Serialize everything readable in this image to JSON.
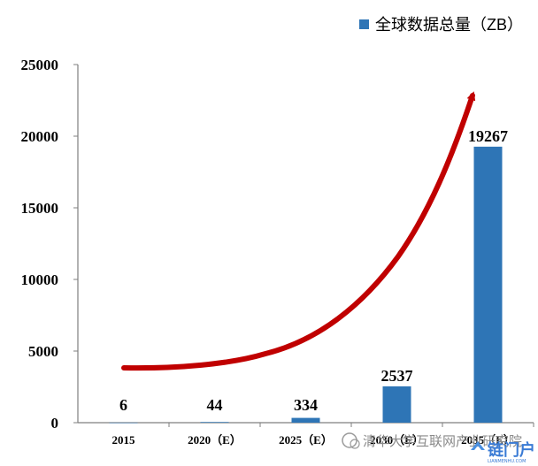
{
  "chart_data": {
    "type": "bar",
    "categories": [
      "2015",
      "2020（E）",
      "2025（E）",
      "2030（E）",
      "2035（E）"
    ],
    "series": [
      {
        "name": "全球数据总量（ZB）",
        "values": [
          6,
          44,
          334,
          2537,
          19267
        ],
        "color": "#2e75b6"
      }
    ],
    "data_labels": [
      "6",
      "44",
      "334",
      "2537",
      "19267"
    ],
    "ylim": [
      0,
      25000
    ],
    "yticks": [
      "0",
      "5000",
      "10000",
      "15000",
      "20000",
      "25000"
    ],
    "legend_position": "top-right",
    "grid": false,
    "trend_arrow_color": "#c00000"
  },
  "watermark": {
    "text": "清华大学互联网产业研究院",
    "logo_text": "链门户",
    "logo_sub": "LIANMENHU.COM"
  }
}
